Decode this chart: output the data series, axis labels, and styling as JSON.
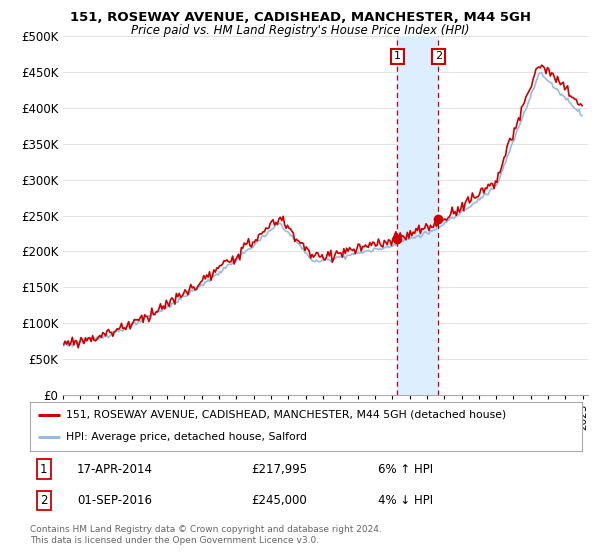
{
  "title": "151, ROSEWAY AVENUE, CADISHEAD, MANCHESTER, M44 5GH",
  "subtitle": "Price paid vs. HM Land Registry's House Price Index (HPI)",
  "legend_line1": "151, ROSEWAY AVENUE, CADISHEAD, MANCHESTER, M44 5GH (detached house)",
  "legend_line2": "HPI: Average price, detached house, Salford",
  "annotation1_date": "17-APR-2014",
  "annotation1_price": "£217,995",
  "annotation1_hpi": "6% ↑ HPI",
  "annotation2_date": "01-SEP-2016",
  "annotation2_price": "£245,000",
  "annotation2_hpi": "4% ↓ HPI",
  "copyright": "Contains HM Land Registry data © Crown copyright and database right 2024.\nThis data is licensed under the Open Government Licence v3.0.",
  "house_color": "#cc0000",
  "hpi_color": "#99bbdd",
  "marker_color": "#cc0000",
  "annotation_box_color": "#cc0000",
  "shading_color": "#ddeeff",
  "background_color": "#ffffff",
  "grid_color": "#dddddd",
  "ylim": [
    0,
    500000
  ],
  "yticks": [
    0,
    50000,
    100000,
    150000,
    200000,
    250000,
    300000,
    350000,
    400000,
    450000,
    500000
  ],
  "sale1_t": 2014.29,
  "sale2_t": 2016.67,
  "sale1_price": 217995,
  "sale2_price": 245000
}
